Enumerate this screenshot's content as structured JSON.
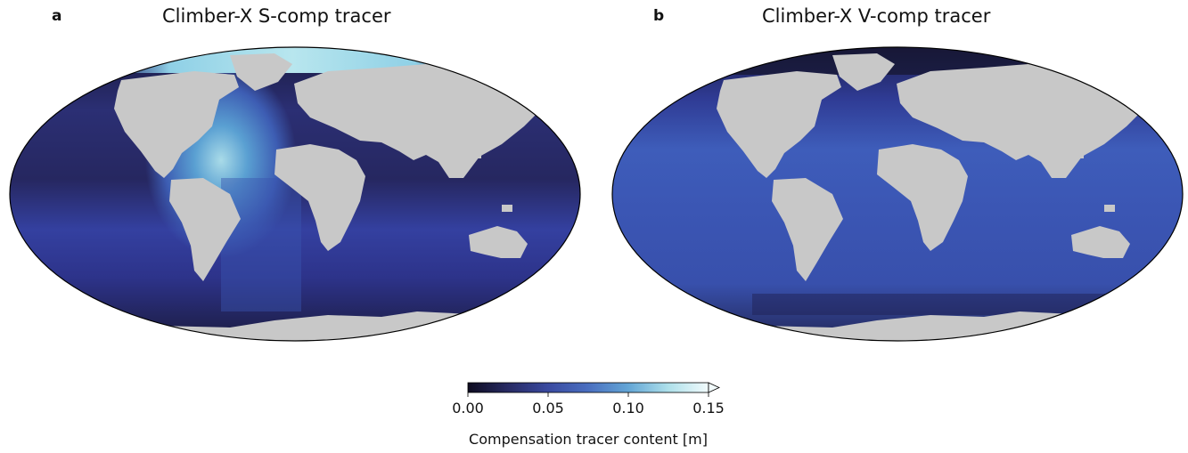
{
  "panels": [
    {
      "letter": "a",
      "title": "Climber-X S-comp tracer"
    },
    {
      "letter": "b",
      "title": "Climber-X V-comp tracer"
    }
  ],
  "colorbar": {
    "label": "Compensation tracer content [m]",
    "ticks": [
      "0.00",
      "0.05",
      "0.10",
      "0.15"
    ],
    "min": 0.0,
    "max": 0.15,
    "extend": "max",
    "colors": [
      "#0d0b1f",
      "#272a63",
      "#3a4aa0",
      "#4a6fc0",
      "#63a6d6",
      "#aee0ea",
      "#f2fbfc"
    ]
  },
  "map_style": {
    "land_color": "#c8c8c8",
    "projection": "Robinson (global)"
  }
}
